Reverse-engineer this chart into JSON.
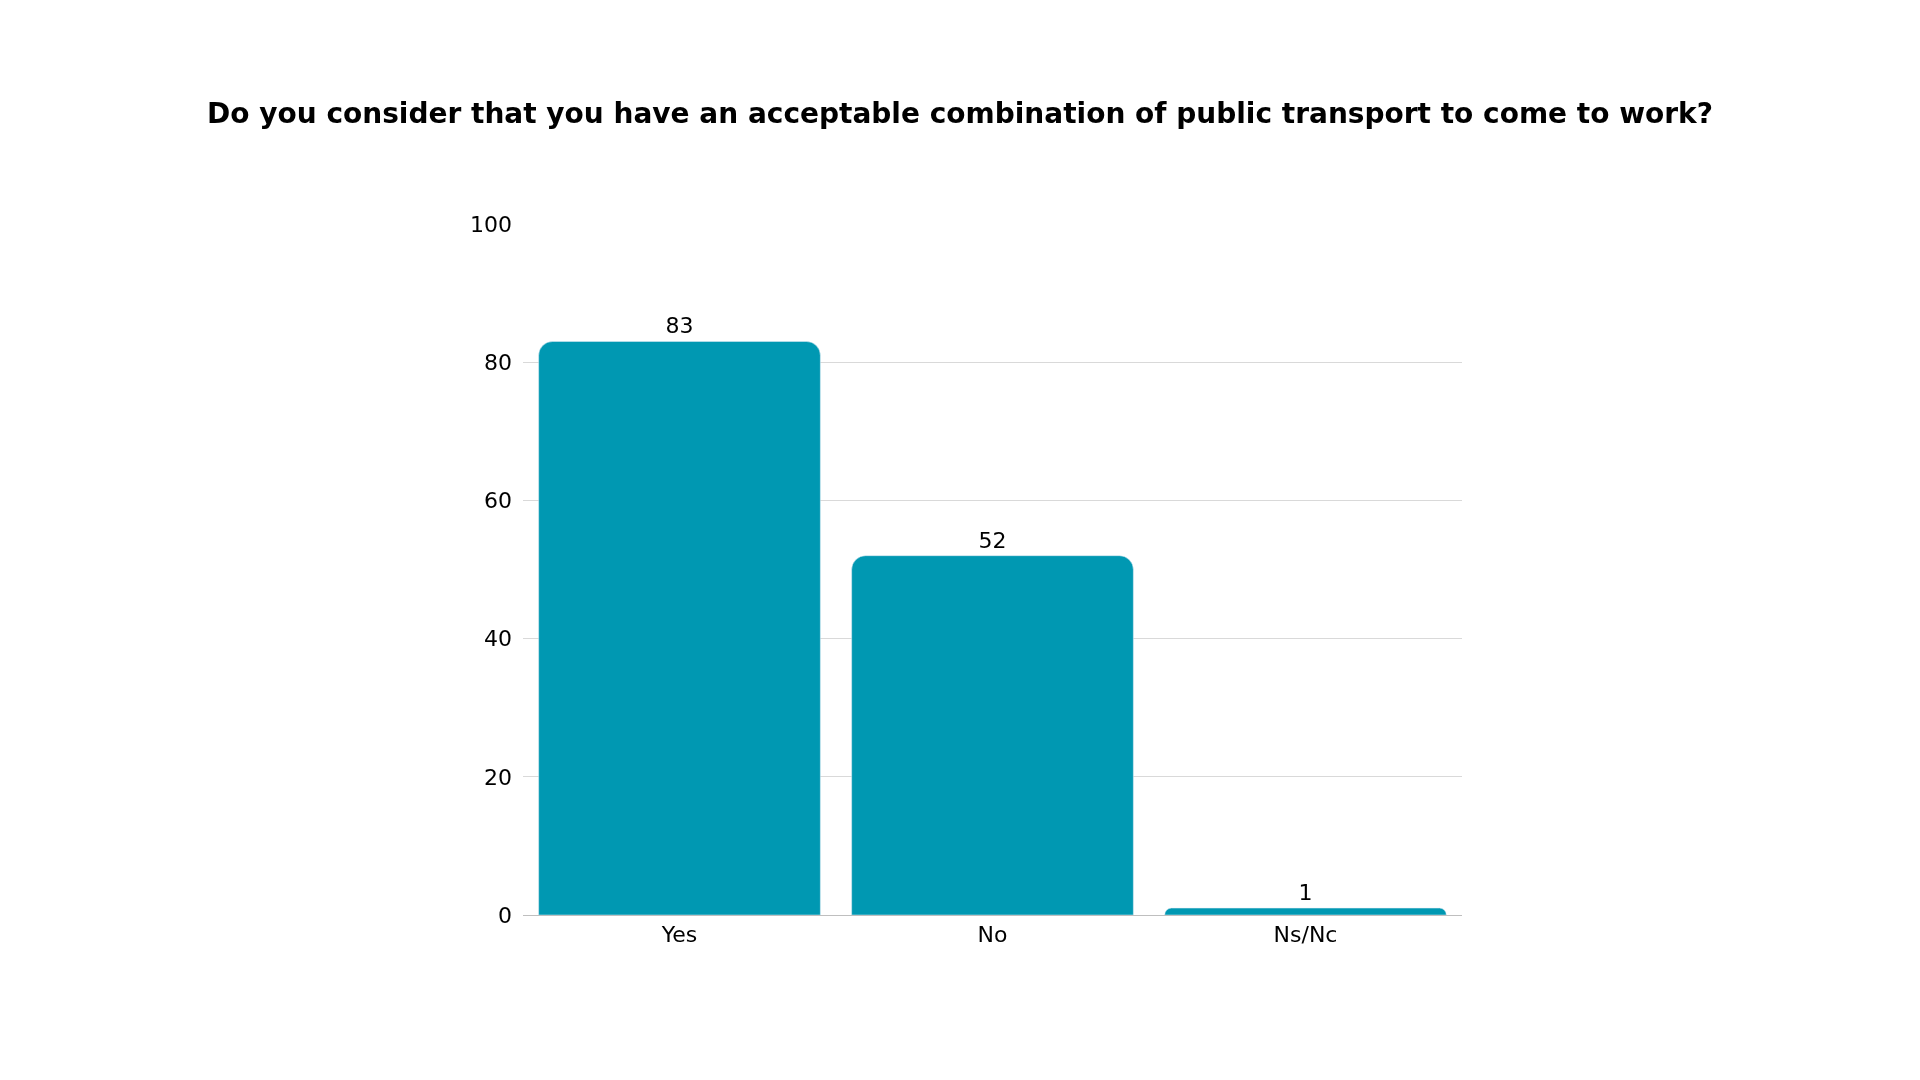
{
  "chart_data": {
    "type": "bar",
    "title": "Do you consider that you have an acceptable combination of public transport to come to work?",
    "categories": [
      "Yes",
      "No",
      "Ns/Nc"
    ],
    "values": [
      83,
      52,
      1
    ],
    "color": "#0098b2",
    "ylim": [
      0,
      100
    ],
    "yticks": [
      0,
      20,
      40,
      60,
      80,
      100
    ],
    "grid": "y",
    "data_labels": true,
    "legend": false
  }
}
